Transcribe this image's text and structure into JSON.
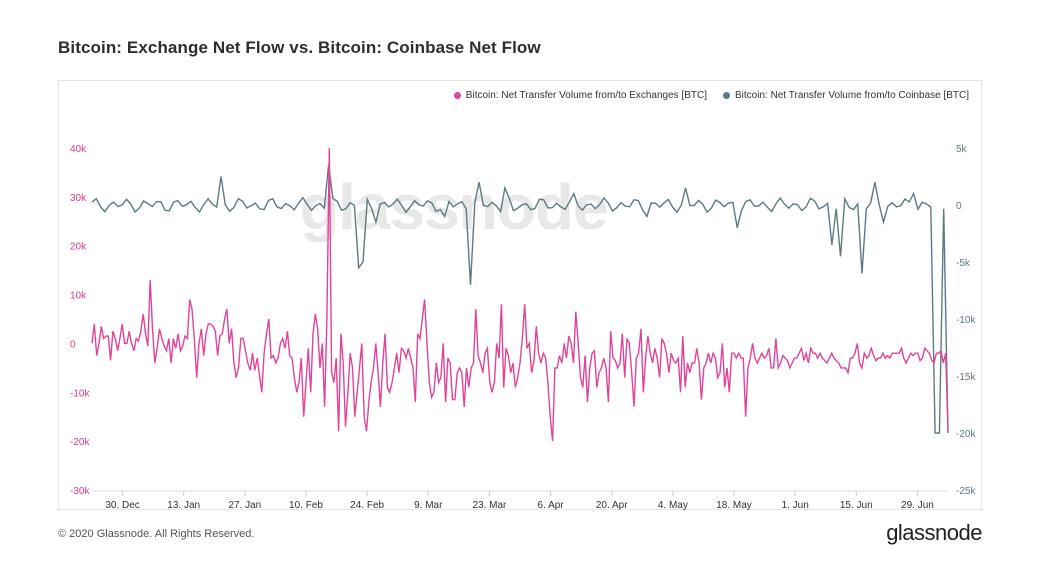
{
  "page": {
    "title": "Bitcoin: Exchange Net Flow vs. Bitcoin: Coinbase Net Flow",
    "footer": "© 2020 Glassnode. All Rights Reserved.",
    "brand": "glassnode",
    "watermark": "glassnode"
  },
  "chart_data": {
    "type": "line",
    "title": "Bitcoin: Exchange Net Flow vs. Bitcoin: Coinbase Net Flow",
    "x_tick_labels": [
      "30. Dec",
      "13. Jan",
      "27. Jan",
      "10. Feb",
      "24. Feb",
      "9. Mar",
      "23. Mar",
      "6. Apr",
      "20. Apr",
      "4. May",
      "18. May",
      "1. Jun",
      "15. Jun",
      "29. Jun"
    ],
    "x_range": [
      "2019-12-23",
      "2020-07-06"
    ],
    "left_axis": {
      "ticks": [
        "-30k",
        "-20k",
        "-10k",
        "0",
        "10k",
        "20k",
        "30k",
        "40k"
      ],
      "range": [
        -30000,
        40000
      ],
      "color": "#d63b8f"
    },
    "right_axis": {
      "ticks": [
        "-25k",
        "-20k",
        "-15k",
        "-10k",
        "-5k",
        "0",
        "5k"
      ],
      "range": [
        -25000,
        5000
      ],
      "color": "#5d7a84"
    },
    "grid": false,
    "legend_position": "top-right",
    "series": [
      {
        "name": "Bitcoin: Net Transfer Volume from/to Exchanges [BTC]",
        "axis": "left",
        "color": "#e0449a",
        "values": [
          0,
          4000,
          -2500,
          0,
          3500,
          1000,
          1500,
          1500,
          -3500,
          2500,
          1000,
          -1500,
          1000,
          4000,
          0,
          0,
          2500,
          0,
          -1500,
          1000,
          500,
          2500,
          6000,
          2000,
          -500,
          13000,
          3000,
          -4000,
          -1000,
          3000,
          1000,
          -500,
          -1500,
          1000,
          -4000,
          1000,
          -1000,
          2000,
          -1500,
          -500,
          1500,
          1000,
          9000,
          7000,
          1000,
          -7000,
          0,
          3000,
          -2500,
          2000,
          4000,
          4000,
          3500,
          2500,
          -2500,
          1500,
          2000,
          5000,
          7000,
          0,
          3000,
          -4000,
          -7000,
          -5000,
          1000,
          1000,
          -1500,
          -4000,
          -5500,
          -2000,
          -5500,
          -3000,
          -6500,
          -10000,
          -2000,
          2000,
          5000,
          -3000,
          -2500,
          -4000,
          -3000,
          0,
          1000,
          -1000,
          2500,
          -2500,
          -3000,
          -7000,
          -10000,
          -8000,
          -3000,
          -15000,
          -8000,
          -1000,
          -10000,
          2000,
          6000,
          3000,
          -5000,
          0,
          -13000,
          5000,
          40000,
          -6000,
          -8000,
          -3000,
          -18000,
          2000,
          -4000,
          -17000,
          -10000,
          -2000,
          -5000,
          -15000,
          -10000,
          -5000,
          0,
          -15000,
          -18000,
          -12000,
          -8000,
          -5000,
          0,
          -6000,
          -13000,
          -4000,
          2000,
          -9000,
          -10000,
          -8000,
          -5000,
          -2000,
          -6000,
          -1000,
          -1500,
          -3000,
          -1000,
          -3000,
          -5000,
          -12000,
          2000,
          1000,
          5000,
          9000,
          0,
          -8000,
          -11000,
          -10000,
          -4000,
          -8000,
          -7000,
          0,
          -12000,
          -3000,
          -4000,
          -11500,
          -11500,
          -6000,
          -5000,
          -6000,
          -13000,
          -5000,
          -9000,
          -5000,
          -4000,
          7000,
          -2500,
          -4000,
          -6000,
          -2000,
          -1000,
          -8000,
          -10000,
          -8000,
          0,
          -3000,
          8000,
          -9000,
          -1000,
          -2500,
          -6000,
          -4000,
          -9000,
          -7000,
          -4000,
          1000,
          8000,
          -1000,
          0,
          -6000,
          -3500,
          3500,
          -2000,
          -4000,
          -2000,
          -3000,
          -8000,
          -15000,
          -20000,
          -5000,
          -5000,
          -2500,
          -4000,
          0,
          -3000,
          1500,
          0,
          -4000,
          6500,
          0,
          -7000,
          -9000,
          -2500,
          -12000,
          -5000,
          -2000,
          -1500,
          -9000,
          -6000,
          -5000,
          -3000,
          -5000,
          -12000,
          2500,
          -3000,
          -3500,
          -5000,
          -4000,
          2000,
          -7000,
          1000,
          0,
          -6000,
          -13000,
          -3000,
          -2000,
          3000,
          -10000,
          -3000,
          1500,
          -2000,
          -4000,
          -1000,
          -3000,
          -7000,
          1000,
          0,
          -2000,
          -6000,
          -2000,
          -3500,
          -4000,
          -3000,
          -10000,
          1500,
          -9000,
          -4000,
          -6000,
          -4000,
          -4000,
          -1000,
          -4000,
          -11500,
          -5000,
          -4000,
          -2000,
          -4000,
          -2000,
          -3000,
          -7000,
          -6000,
          0,
          -9000,
          -5000,
          -10000,
          -2000,
          -2000,
          -3000,
          -2000,
          -3000,
          -3000,
          -15000,
          -5000,
          -3000,
          0,
          -3000,
          -4000,
          -3000,
          -2000,
          -3000,
          -2500,
          -1000,
          -5000,
          -5000,
          1000,
          -5000,
          -4000,
          -2500,
          -3000,
          -3500,
          -5000,
          -4000,
          -3000,
          -3000,
          -2000,
          -1000,
          -3500,
          -2000,
          -4000,
          -1000,
          -2000,
          -2000,
          -3000,
          -2000,
          -3000,
          -3500,
          -4000,
          -3000,
          -2000,
          -3000,
          -3500,
          -4000,
          -5000,
          -5000,
          -5000,
          -6000,
          -3000,
          -3000,
          -2000,
          0,
          -4000,
          -5000,
          -2000,
          -3000,
          -2500,
          -1000,
          -2500,
          -3500,
          -3000,
          -3000,
          -2000,
          -3000,
          -2500,
          -3000,
          -2000,
          -2000,
          -2000,
          -2000,
          -1000,
          -3000,
          -4000,
          -3000,
          -2000,
          -2500,
          -2000,
          -2000,
          -3500,
          -3000,
          -1000,
          -1500,
          -2000,
          -3500,
          -4000,
          -2000,
          -2000,
          -1500,
          -4000,
          -2000,
          -18000
        ]
      },
      {
        "name": "Bitcoin: Net Transfer Volume from/to Coinbase [BTC]",
        "axis": "right",
        "color": "#5d7a84",
        "values": []
      }
    ]
  }
}
